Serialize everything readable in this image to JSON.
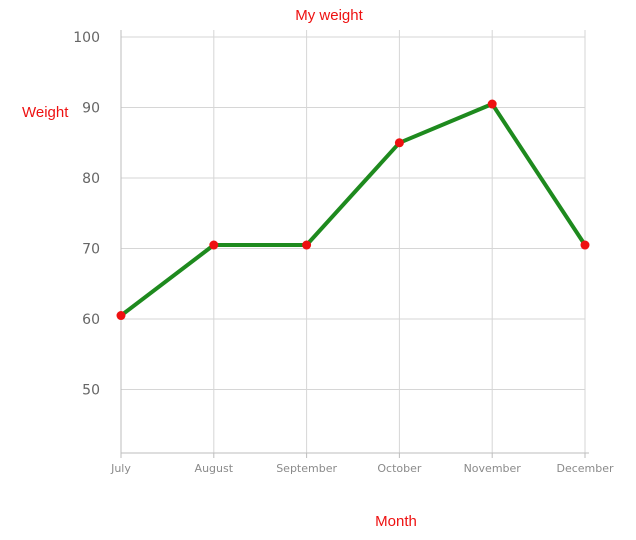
{
  "chart_data": {
    "type": "line",
    "title": "My weight",
    "xlabel": "Month",
    "ylabel": "Weight",
    "categories": [
      "July",
      "August",
      "September",
      "October",
      "November",
      "December"
    ],
    "series": [
      {
        "values": [
          60.5,
          70.5,
          70.5,
          85,
          90.5,
          70.5
        ]
      }
    ],
    "yticks": [
      50,
      60,
      70,
      80,
      90,
      100
    ],
    "ylim": [
      41,
      101
    ],
    "grid": true,
    "line_color": "#1e8a1e",
    "marker_color": "#ee1111",
    "title_color": "#ee1111",
    "grid_color": "#d6d6d6"
  }
}
